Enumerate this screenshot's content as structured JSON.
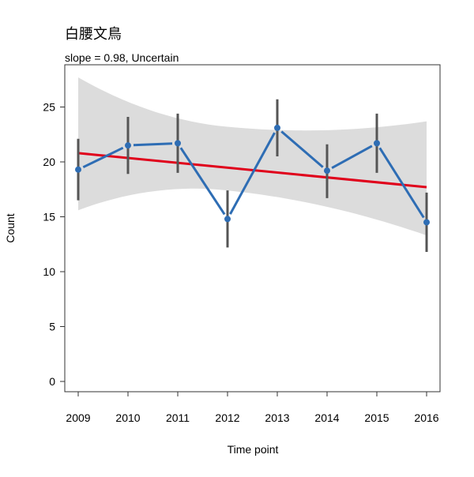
{
  "chart_data": {
    "type": "line",
    "title": "白腰文鳥",
    "subtitle": "slope = 0.98, Uncertain",
    "xlabel": "Time point",
    "ylabel": "Count",
    "x": [
      "2009",
      "2010",
      "2011",
      "2012",
      "2013",
      "2014",
      "2015",
      "2016"
    ],
    "y_ticks": [
      0,
      5,
      10,
      15,
      20,
      25
    ],
    "ylim": [
      -1,
      28
    ],
    "grid": false,
    "series": [
      {
        "values": [
          19.3,
          21.5,
          21.7,
          14.8,
          23.1,
          19.2,
          21.7,
          14.5
        ],
        "error_low": [
          16.5,
          18.9,
          19.0,
          12.2,
          20.5,
          16.7,
          19.0,
          11.8
        ],
        "error_high": [
          22.1,
          24.1,
          24.4,
          17.4,
          25.7,
          21.6,
          24.4,
          17.2
        ]
      }
    ],
    "trend": {
      "start": 20.8,
      "end": 17.7,
      "ci_start_low": 15.6,
      "ci_start_high": 27.7,
      "ci_end_low": 13.3,
      "ci_end_high": 23.7
    },
    "colors": {
      "series": "#2e6db4",
      "error_bar": "#555555",
      "trend": "#e0001b",
      "ci_band": "#dcdcdc"
    }
  }
}
